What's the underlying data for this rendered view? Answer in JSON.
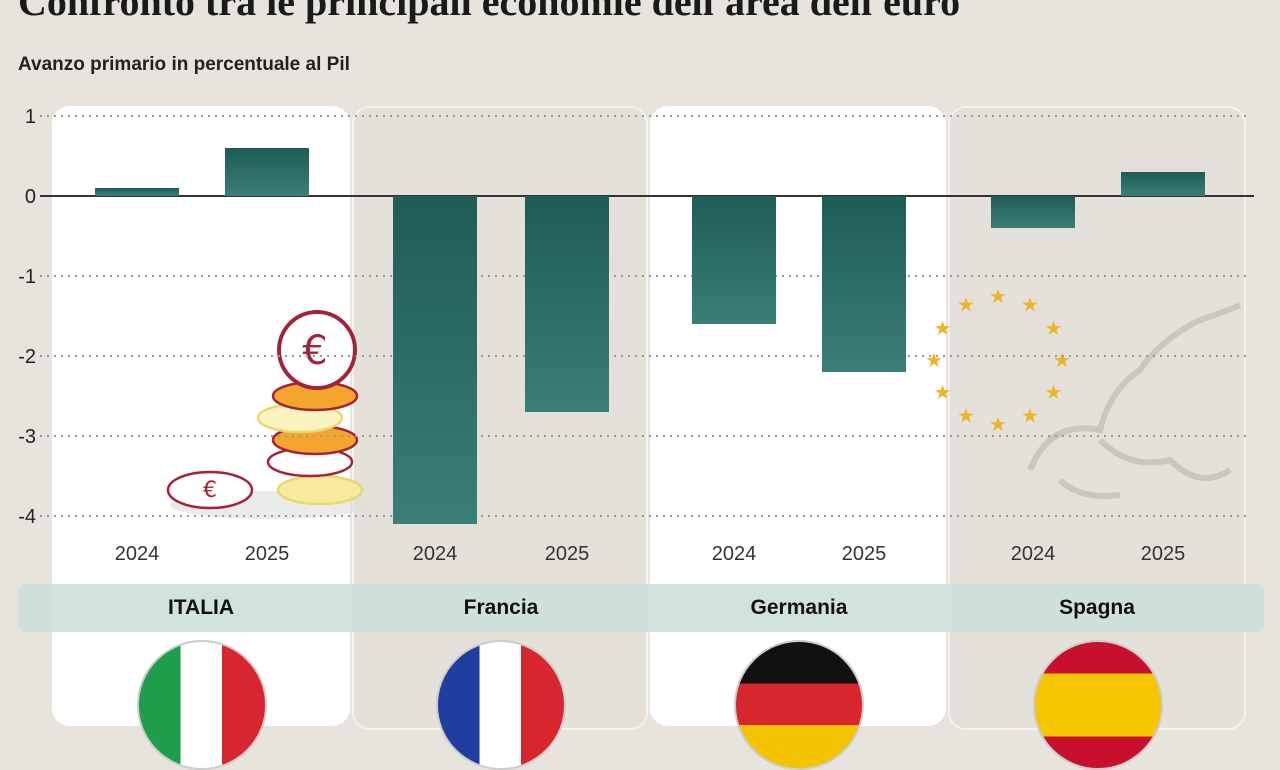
{
  "title": "Confronto tra le principali economie dell'area dell'euro",
  "subtitle": "Avanzo primario in percentuale al Pil",
  "colors": {
    "bar": "#1f5c57",
    "bar_light": "#3a7e78",
    "band": "#cde0db",
    "background": "#e6e4dc"
  },
  "chart_data": {
    "type": "bar",
    "title": "Confronto tra le principali economie dell'area dell'euro",
    "subtitle": "Avanzo primario in percentuale al Pil",
    "groups": [
      "ITALIA",
      "Francia",
      "Germania",
      "Spagna"
    ],
    "categories": [
      "2024",
      "2025"
    ],
    "series": [
      {
        "group": "ITALIA",
        "values": [
          0.1,
          0.6
        ]
      },
      {
        "group": "Francia",
        "values": [
          -4.1,
          -2.7
        ]
      },
      {
        "group": "Germania",
        "values": [
          -1.6,
          -2.2
        ]
      },
      {
        "group": "Spagna",
        "values": [
          -0.4,
          0.3
        ]
      }
    ],
    "yticks": [
      "1",
      "0",
      "-1",
      "-2",
      "-3",
      "-4"
    ],
    "ylim": [
      -4,
      1
    ],
    "grid": true,
    "legend": "none"
  },
  "decorations": [
    "euro-coins-icon",
    "eu-stars-icon",
    "europe-map-icon"
  ],
  "flags": [
    "italy-flag-icon",
    "france-flag-icon",
    "germany-flag-icon",
    "spain-flag-icon"
  ]
}
